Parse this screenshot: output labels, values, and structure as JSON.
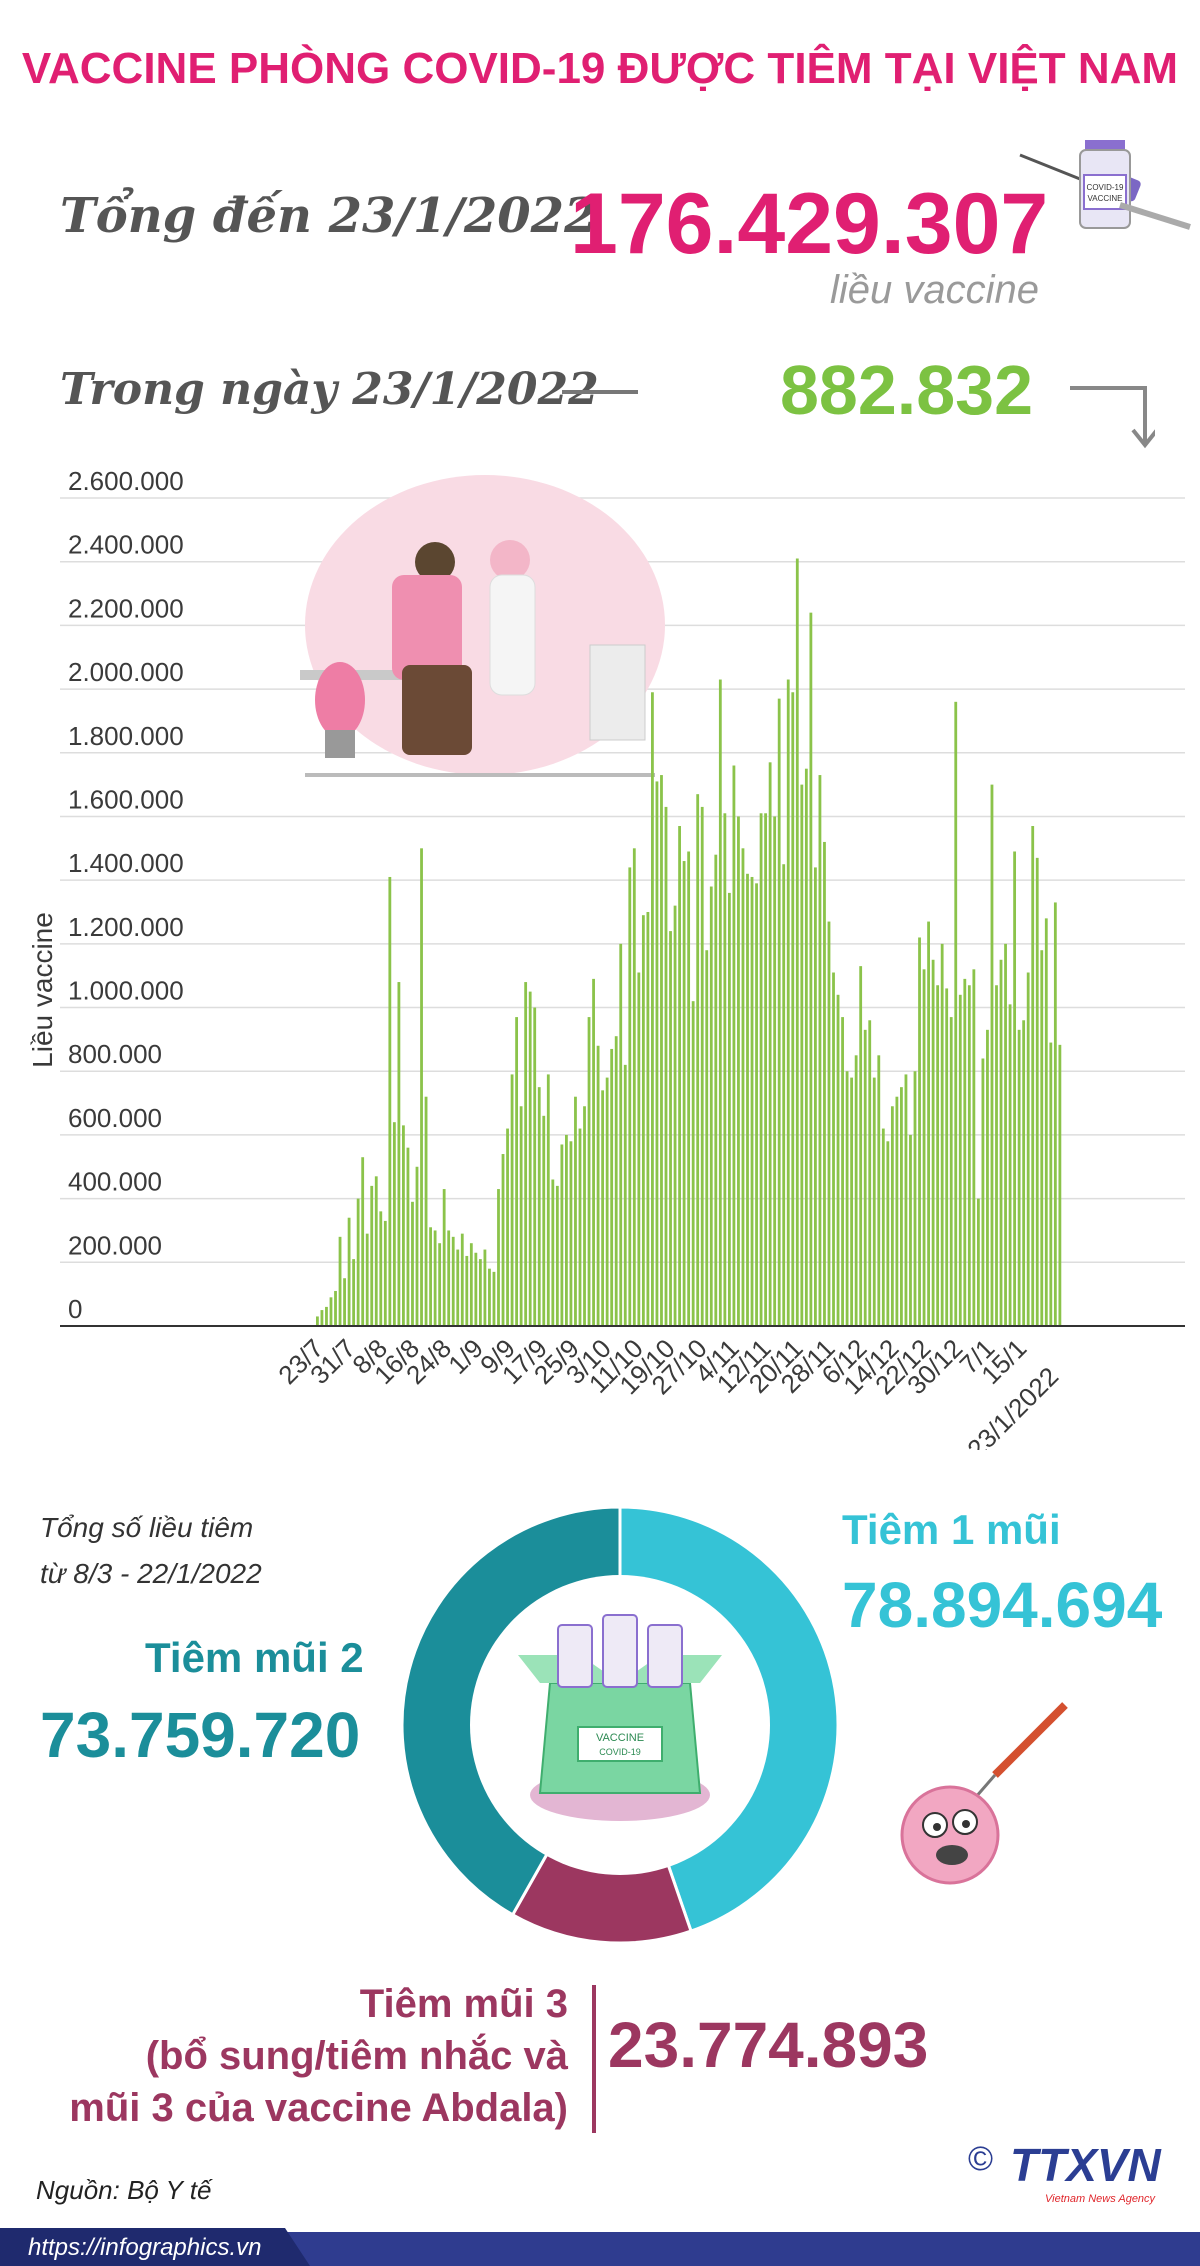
{
  "header": {
    "title": "VACCINE PHÒNG COVID-19 ĐƯỢC TIÊM TẠI VIỆT NAM",
    "total_label": "Tổng đến 23/1/2022",
    "total_value": "176.429.307",
    "total_unit": "liều vaccine",
    "day_label": "Trong ngày 23/1/2022",
    "day_value": "882.832"
  },
  "colors": {
    "title": "#e01f72",
    "bars": "#8bc34a",
    "day_value": "#7cc242",
    "dose1": "#35c3d6",
    "dose2": "#1b8e9a",
    "dose3": "#9c3760",
    "footer": "#2f3c8f"
  },
  "chart_data": {
    "type": "bar",
    "ylabel": "Liều vaccine",
    "ylim": [
      0,
      2600000
    ],
    "yticks": [
      "0",
      "200.000",
      "400.000",
      "600.000",
      "800.000",
      "1.000.000",
      "1.200.000",
      "1.400.000",
      "1.600.000",
      "1.800.000",
      "2.000.000",
      "2.200.000",
      "2.400.000",
      "2.600.000"
    ],
    "x_tick_labels": [
      "23/7",
      "31/7",
      "8/8",
      "16/8",
      "24/8",
      "1/9",
      "9/9",
      "17/9",
      "25/9",
      "3/10",
      "11/10",
      "19/10",
      "27/10",
      "4/11",
      "12/11",
      "20/11",
      "28/11",
      "6/12",
      "14/12",
      "22/12",
      "30/12",
      "7/1",
      "15/1",
      "23/1/2022"
    ],
    "x_start": "23/7/2021",
    "x_end": "23/1/2022",
    "grid": true,
    "values": [
      30000,
      50000,
      60000,
      90000,
      110000,
      280000,
      150000,
      340000,
      210000,
      400000,
      530000,
      290000,
      440000,
      470000,
      360000,
      330000,
      1410000,
      640000,
      1080000,
      630000,
      560000,
      390000,
      500000,
      1500000,
      720000,
      310000,
      300000,
      260000,
      430000,
      300000,
      280000,
      240000,
      290000,
      220000,
      260000,
      230000,
      210000,
      240000,
      180000,
      170000,
      430000,
      540000,
      620000,
      790000,
      970000,
      690000,
      1080000,
      1050000,
      1000000,
      750000,
      660000,
      790000,
      460000,
      440000,
      570000,
      600000,
      580000,
      720000,
      620000,
      690000,
      970000,
      1090000,
      880000,
      740000,
      780000,
      870000,
      910000,
      1200000,
      820000,
      1440000,
      1500000,
      1110000,
      1290000,
      1300000,
      1990000,
      1710000,
      1730000,
      1630000,
      1240000,
      1320000,
      1570000,
      1460000,
      1490000,
      1020000,
      1670000,
      1630000,
      1180000,
      1380000,
      1480000,
      2030000,
      1610000,
      1360000,
      1760000,
      1600000,
      1500000,
      1420000,
      1410000,
      1390000,
      1610000,
      1610000,
      1770000,
      1600000,
      1970000,
      1450000,
      2030000,
      1990000,
      2410000,
      1700000,
      1750000,
      2240000,
      1440000,
      1730000,
      1520000,
      1270000,
      1110000,
      1040000,
      970000,
      800000,
      780000,
      850000,
      1130000,
      930000,
      960000,
      780000,
      850000,
      620000,
      580000,
      690000,
      720000,
      750000,
      790000,
      600000,
      800000,
      1220000,
      1120000,
      1270000,
      1150000,
      1070000,
      1200000,
      1060000,
      970000,
      1960000,
      1040000,
      1090000,
      1070000,
      1120000,
      400000,
      840000,
      930000,
      1700000,
      1070000,
      1150000,
      1200000,
      1010000,
      1490000,
      930000,
      960000,
      1110000,
      1570000,
      1470000,
      1180000,
      1280000,
      890000,
      1330000,
      882832
    ]
  },
  "donut": {
    "title_lines": [
      "Tổng số liều tiêm",
      "từ 8/3 - 22/1/2022"
    ],
    "segments": [
      {
        "label": "Tiêm 1 mũi",
        "value": 78894694,
        "display": "78.894.694",
        "color": "#35c3d6"
      },
      {
        "label": "Tiêm mũi 3",
        "value": 23774893,
        "display": "23.774.893",
        "color": "#9c3760"
      },
      {
        "label": "Tiêm mũi 2",
        "value": 73759720,
        "display": "73.759.720",
        "color": "#1b8e9a"
      }
    ],
    "dose3_lines": [
      "Tiêm mũi 3",
      "(bổ sung/tiêm nhắc và",
      "mũi 3 của vaccine Abdala)"
    ],
    "box_label": "VACCINE",
    "box_sublabel": "COVID-19"
  },
  "footer": {
    "source": "Nguồn: Bộ Y tế",
    "url": "https://infographics.vn",
    "logo": "TTXVN",
    "logo_sub": "Vietnam News Agency",
    "copyright": "©"
  }
}
